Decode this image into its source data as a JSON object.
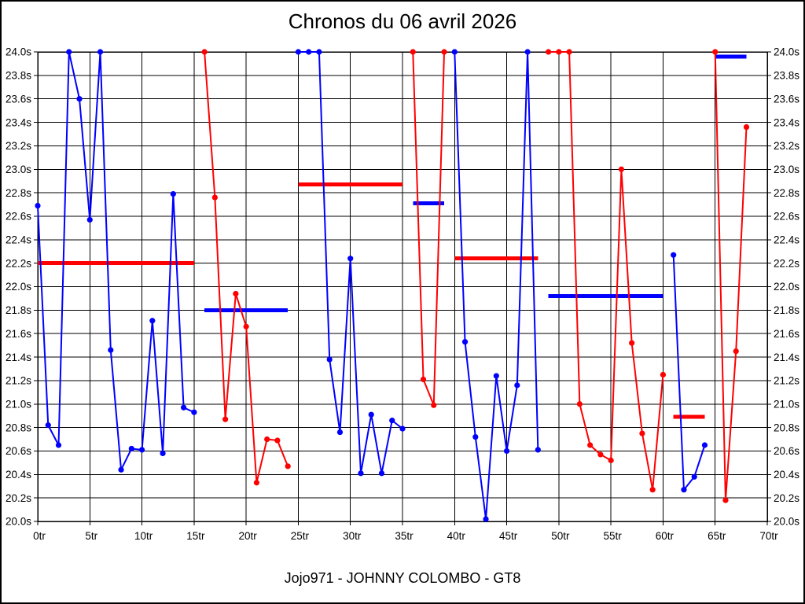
{
  "chart_data": {
    "type": "line",
    "title": "Chronos du 06 avril 2026",
    "caption": "Jojo971 - JOHNNY COLOMBO - GT8",
    "x_unit": "tr",
    "y_unit": "s",
    "xlim": [
      0,
      70
    ],
    "ylim": [
      20.0,
      24.0
    ],
    "x_tick_step": 5,
    "y_tick_step": 0.2,
    "grid": true,
    "legend": "none",
    "x_tick_labels": [
      "0tr",
      "5tr",
      "10tr",
      "15tr",
      "20tr",
      "25tr",
      "30tr",
      "35tr",
      "40tr",
      "45tr",
      "50tr",
      "55tr",
      "60tr",
      "65tr",
      "70tr"
    ],
    "y_tick_labels": [
      "20.0s",
      "20.2s",
      "20.4s",
      "20.6s",
      "20.8s",
      "21.0s",
      "21.2s",
      "21.4s",
      "21.6s",
      "21.8s",
      "22.0s",
      "22.2s",
      "22.4s",
      "22.6s",
      "22.8s",
      "23.0s",
      "23.2s",
      "23.4s",
      "23.6s",
      "23.8s",
      "24.0s"
    ],
    "series": [
      {
        "name": "driver-blue-lap-times",
        "color": "#0000ff",
        "stints": [
          [
            [
              0,
              22.69
            ],
            [
              1,
              20.82
            ],
            [
              2,
              20.65
            ],
            [
              3,
              24.0
            ],
            [
              4,
              23.6
            ],
            [
              5,
              22.57
            ],
            [
              6,
              24.0
            ],
            [
              7,
              21.46
            ],
            [
              8,
              20.44
            ],
            [
              9,
              20.62
            ],
            [
              10,
              20.61
            ],
            [
              11,
              21.71
            ],
            [
              12,
              20.58
            ],
            [
              13,
              22.79
            ],
            [
              14,
              20.97
            ],
            [
              15,
              20.93
            ]
          ],
          [
            [
              25,
              24.0
            ],
            [
              26,
              24.0
            ],
            [
              27,
              24.0
            ],
            [
              28,
              21.38
            ],
            [
              29,
              20.76
            ],
            [
              30,
              22.24
            ],
            [
              31,
              20.41
            ],
            [
              32,
              20.91
            ],
            [
              33,
              20.41
            ],
            [
              34,
              20.86
            ],
            [
              35,
              20.79
            ]
          ],
          [
            [
              40,
              24.0
            ],
            [
              41,
              21.53
            ],
            [
              42,
              20.72
            ],
            [
              43,
              20.02
            ],
            [
              44,
              21.24
            ],
            [
              45,
              20.6
            ],
            [
              46,
              21.16
            ],
            [
              47,
              24.0
            ],
            [
              48,
              20.61
            ]
          ],
          [
            [
              61,
              22.27
            ],
            [
              62,
              20.27
            ],
            [
              63,
              20.38
            ],
            [
              64,
              20.65
            ]
          ]
        ]
      },
      {
        "name": "driver-red-lap-times",
        "color": "#ff0000",
        "stints": [
          [
            [
              16,
              24.0
            ],
            [
              17,
              22.76
            ],
            [
              18,
              20.87
            ],
            [
              19,
              21.94
            ],
            [
              20,
              21.66
            ],
            [
              21,
              20.33
            ],
            [
              22,
              20.7
            ],
            [
              23,
              20.69
            ],
            [
              24,
              20.47
            ]
          ],
          [
            [
              36,
              24.0
            ],
            [
              37,
              21.21
            ],
            [
              38,
              20.99
            ],
            [
              39,
              24.0
            ]
          ],
          [
            [
              49,
              24.0
            ],
            [
              50,
              24.0
            ],
            [
              51,
              24.0
            ],
            [
              52,
              21.0
            ],
            [
              53,
              20.65
            ],
            [
              54,
              20.57
            ],
            [
              55,
              20.52
            ],
            [
              56,
              23.0
            ],
            [
              57,
              21.52
            ],
            [
              58,
              20.75
            ],
            [
              59,
              20.27
            ],
            [
              60,
              21.25
            ]
          ],
          [
            [
              65,
              24.0
            ],
            [
              66,
              20.18
            ],
            [
              67,
              21.45
            ],
            [
              68,
              23.36
            ]
          ]
        ]
      }
    ],
    "stint_average_lines": [
      {
        "color": "#ff0000",
        "value": 22.2,
        "lap_from": 0,
        "lap_to": 15
      },
      {
        "color": "#0000ff",
        "value": 21.8,
        "lap_from": 16,
        "lap_to": 24
      },
      {
        "color": "#ff0000",
        "value": 22.87,
        "lap_from": 25,
        "lap_to": 35
      },
      {
        "color": "#0000ff",
        "value": 22.71,
        "lap_from": 36,
        "lap_to": 39
      },
      {
        "color": "#ff0000",
        "value": 22.24,
        "lap_from": 40,
        "lap_to": 48
      },
      {
        "color": "#0000ff",
        "value": 21.92,
        "lap_from": 49,
        "lap_to": 60
      },
      {
        "color": "#ff0000",
        "value": 20.89,
        "lap_from": 61,
        "lap_to": 64
      },
      {
        "color": "#0000ff",
        "value": 23.96,
        "lap_from": 65,
        "lap_to": 68
      }
    ]
  }
}
